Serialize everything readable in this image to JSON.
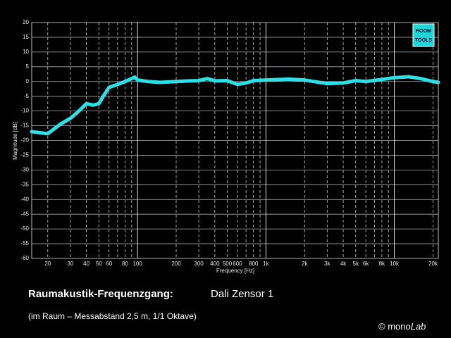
{
  "chart_data": {
    "type": "line",
    "xlabel": "Frequency [Hz]",
    "ylabel": "Magnitude [dB]",
    "logo": [
      "ROOM",
      "TOOLS"
    ],
    "x": [
      15,
      20,
      25,
      30,
      35,
      40,
      45,
      50,
      55,
      60,
      70,
      80,
      90,
      95,
      100,
      120,
      150,
      200,
      250,
      300,
      350,
      400,
      500,
      600,
      700,
      800,
      1000,
      1500,
      2000,
      3000,
      4000,
      5000,
      6000,
      8000,
      10000,
      13000,
      16000,
      20000,
      22000
    ],
    "series": [
      {
        "color": "#2de0e6",
        "values": [
          -17,
          -17.7,
          -14.5,
          -12.5,
          -10,
          -7.5,
          -8,
          -7.5,
          -4.5,
          -2,
          -1,
          0,
          1,
          1.5,
          0.5,
          0,
          -0.3,
          0,
          0.2,
          0.3,
          1,
          0.2,
          0.3,
          -1,
          -0.5,
          0.3,
          0.5,
          0.8,
          0.5,
          -0.7,
          -0.5,
          0.3,
          0,
          0.7,
          1.3,
          1.6,
          1,
          0,
          -0.3
        ]
      }
    ],
    "xlog": true,
    "xlim": [
      15,
      22000
    ],
    "xticks": [
      20,
      30,
      40,
      50,
      60,
      80,
      100,
      200,
      300,
      400,
      500,
      600,
      800,
      {
        "value": 1000,
        "label": "1k"
      },
      {
        "value": 2000,
        "label": "2k"
      },
      {
        "value": 3000,
        "label": "3k"
      },
      {
        "value": 4000,
        "label": "4k"
      },
      {
        "value": 5000,
        "label": "5k"
      },
      {
        "value": 6000,
        "label": "6k"
      },
      {
        "value": 8000,
        "label": "8k"
      },
      {
        "value": 10000,
        "label": "10k"
      },
      {
        "value": 20000,
        "label": "20k"
      }
    ],
    "xminorticks": [
      70,
      90,
      700,
      900,
      7000,
      9000
    ],
    "ylim": [
      -60,
      20
    ],
    "yticks": [
      20,
      15,
      10,
      5,
      0,
      -5,
      -10,
      -15,
      -20,
      -25,
      -30,
      -35,
      -40,
      -45,
      -50,
      -55,
      -60
    ],
    "grid": true
  },
  "caption": {
    "heading": "Raumakustik-Frequenzgang:",
    "model": "Dali Zensor 1",
    "note": "(im Raum – Messabstand 2,5 m, 1/1 Oktave)",
    "credit_prefix": "© mono",
    "credit_suffix": "Lab"
  }
}
